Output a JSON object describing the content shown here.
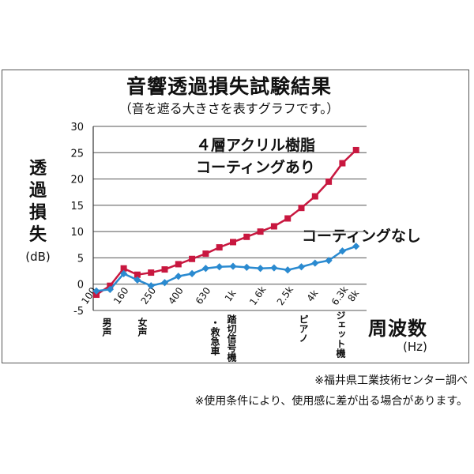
{
  "title": "音響透過損失試験結果",
  "subtitle": "（音を遮る大きさを表すグラフです。）",
  "ylabel_chars": [
    "透",
    "過",
    "損",
    "失"
  ],
  "yunit": "(dB)",
  "xlabel": "周波数",
  "xunit": "(Hz)",
  "note1": "※福井県工業技術センター調べ",
  "note2": "※使用条件により、使用感に差が出る場合があります。",
  "callout_red": [
    "４層アクリル樹脂",
    "コーティングあり"
  ],
  "callout_blue": "コーティングなし",
  "sound_examples": [
    {
      "text": "男声"
    },
    {
      "text": "女声"
    },
    {
      "text": "・救急車"
    },
    {
      "text": "踏切信号機"
    },
    {
      "text": "ピアノ"
    },
    {
      "text": "ジェット機"
    }
  ],
  "colors": {
    "red": "#c8173f",
    "blue": "#2a8ad0",
    "grid": "#555555"
  },
  "chart_data": {
    "type": "line",
    "ylim": [
      -5,
      30
    ],
    "yticks": [
      -5,
      0,
      5,
      10,
      15,
      20,
      25,
      30
    ],
    "grid": true,
    "x_tick_labels": [
      "100",
      "160",
      "250",
      "400",
      "630",
      "1k",
      "1.6k",
      "2.5k",
      "4k",
      "6.3k",
      "8k"
    ],
    "x": [
      "100",
      "125",
      "160",
      "200",
      "250",
      "315",
      "400",
      "500",
      "630",
      "800",
      "1k",
      "1.25k",
      "1.6k",
      "2k",
      "2.5k",
      "3.15k",
      "4k",
      "5k",
      "6.3k",
      "8k"
    ],
    "series": [
      {
        "name": "４層アクリル樹脂 コーティングあり",
        "color": "#c8173f",
        "values": [
          -2,
          -0.3,
          3,
          1.8,
          2.2,
          2.8,
          3.8,
          4.8,
          5.8,
          7,
          8,
          9,
          10,
          11,
          12.5,
          14.5,
          16.7,
          19.5,
          23,
          25.5
        ]
      },
      {
        "name": "コーティングなし",
        "color": "#2a8ad0",
        "values": [
          -1.3,
          -1,
          2,
          0.8,
          -0.3,
          0.3,
          1.5,
          2,
          3,
          3.3,
          3.4,
          3.2,
          3,
          3.1,
          2.7,
          3.3,
          4,
          4.5,
          6.3,
          7.2
        ]
      }
    ]
  }
}
